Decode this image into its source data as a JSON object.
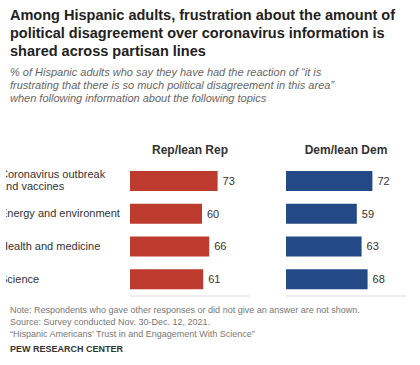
{
  "chart_data": {
    "type": "bar",
    "orientation": "horizontal",
    "title": "Among Hispanic adults, frustration about the amount of political disagreement over coronavirus information is shared across partisan lines",
    "subtitle": "% of Hispanic adults who say they have had the reaction of “it is frustrating that there is so much political disagreement in this area” when following information about the following topics",
    "categories": [
      "Coronavirus outbreak and vaccines",
      "Energy and environment",
      "Health and medicine",
      "Science"
    ],
    "series": [
      {
        "name": "Rep/lean Rep",
        "color": "#bd3a2e",
        "values": [
          73,
          60,
          66,
          61
        ]
      },
      {
        "name": "Dem/lean Dem",
        "color": "#234a86",
        "values": [
          72,
          59,
          63,
          68
        ]
      }
    ],
    "xlim": [
      0,
      100
    ],
    "tick_labels": "y",
    "data_labels": true,
    "grid": false,
    "note": "Note: Respondents who gave other responses or did not give an answer are not shown.",
    "source": "Source: Survey conducted Nov. 30-Dec. 12, 2021.",
    "report": "“Hispanic Americans’ Trust in and Engagement With Science”",
    "credit": "PEW RESEARCH CENTER"
  }
}
